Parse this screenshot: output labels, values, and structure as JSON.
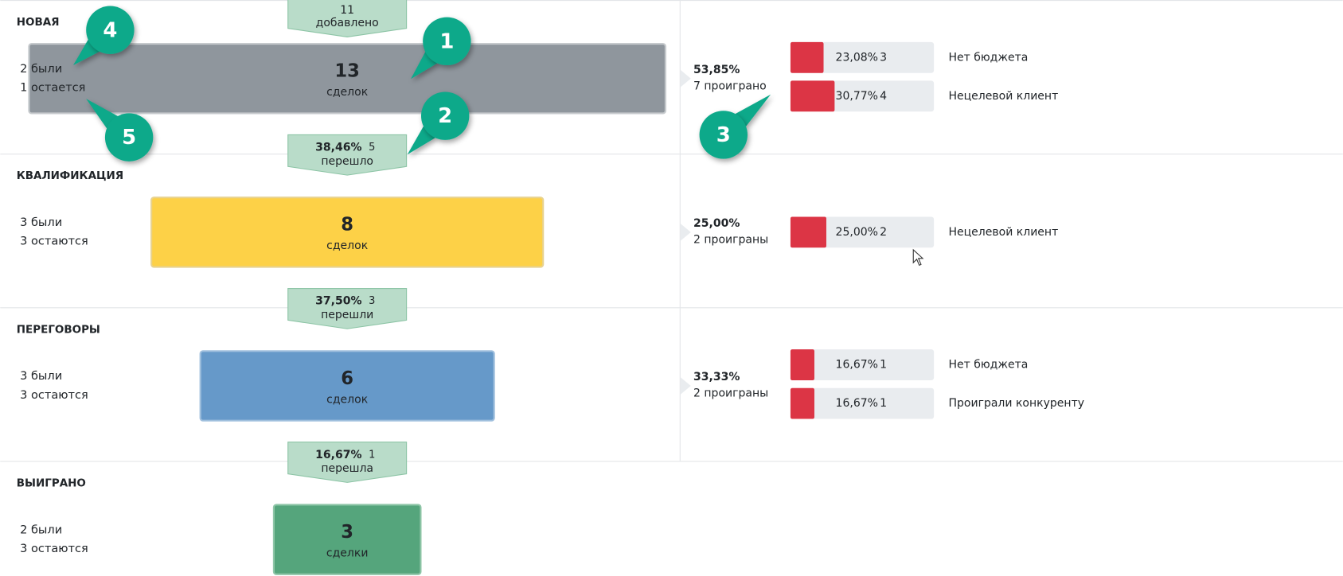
{
  "stages": [
    {
      "title": "НОВАЯ",
      "title_color": "#6c757d",
      "color": "#8f969d",
      "border": "#c6cacd",
      "count": 13,
      "unit": "сделок",
      "was": "2 были",
      "remains": "1 остается",
      "loss": {
        "percent": "53,85%",
        "label": "7 проиграно",
        "reasons": [
          {
            "value": 23.08,
            "label": "23,08%",
            "count": "3",
            "name": "Нет бюджета"
          },
          {
            "value": 30.77,
            "label": "30,77%",
            "count": "4",
            "name": "Нецелевой клиент"
          }
        ]
      }
    },
    {
      "title": "КВАЛИФИКАЦИЯ",
      "title_color": "#f5b800",
      "color": "#fdd147",
      "border": "#e8d28f",
      "count": 8,
      "unit": "сделок",
      "was": "3 были",
      "remains": "3 остаются",
      "loss": {
        "percent": "25,00%",
        "label": "2 проиграны",
        "reasons": [
          {
            "value": 25.0,
            "label": "25,00%",
            "count": "2",
            "name": "Нецелевой клиент"
          }
        ]
      }
    },
    {
      "title": "ПЕРЕГОВОРЫ",
      "title_color": "#3a7dc0",
      "color": "#6699c9",
      "border": "#9fbfdd",
      "count": 6,
      "unit": "сделок",
      "was": "3 были",
      "remains": "3 остаются",
      "loss": {
        "percent": "33,33%",
        "label": "2 проиграны",
        "reasons": [
          {
            "value": 16.67,
            "label": "16,67%",
            "count": "1",
            "name": "Нет бюджета"
          },
          {
            "value": 16.67,
            "label": "16,67%",
            "count": "1",
            "name": "Проиграли конкуренту"
          }
        ]
      }
    },
    {
      "title": "ВЫИГРАНО",
      "title_color": "#1e8a4f",
      "color": "#55a57c",
      "border": "#8fc6a8",
      "count": 3,
      "unit": "сделки",
      "was": "2 были",
      "remains": "3 остаются"
    }
  ],
  "added": {
    "count": "11",
    "label": "добавлено"
  },
  "transitions": [
    {
      "percent": "38,46%",
      "count": "5",
      "label": "перешло"
    },
    {
      "percent": "37,50%",
      "count": "3",
      "label": "перешли"
    },
    {
      "percent": "16,67%",
      "count": "1",
      "label": "перешла"
    }
  ],
  "callouts": [
    "1",
    "2",
    "3",
    "4",
    "5"
  ]
}
